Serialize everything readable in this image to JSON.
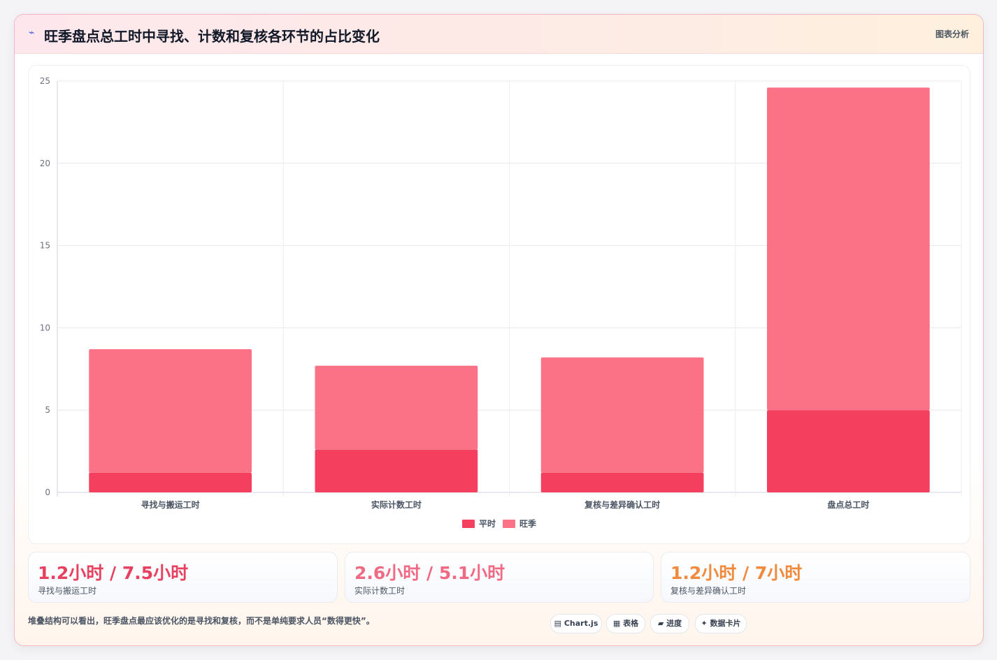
{
  "header": {
    "icon": "bolt-icon",
    "title": "旺季盘点总工时中寻找、计数和复核各环节的占比变化",
    "tag": "图表分析"
  },
  "chart_data": {
    "type": "bar",
    "stacked": true,
    "categories": [
      "寻找与搬运工时",
      "实际计数工时",
      "复核与差异确认工时",
      "盘点总工时"
    ],
    "series": [
      {
        "name": "平时",
        "values": [
          1.2,
          2.6,
          1.2,
          5.0
        ],
        "color": "#f43f5e"
      },
      {
        "name": "旺季",
        "values": [
          7.5,
          5.1,
          7.0,
          19.6
        ],
        "color": "#fb7185"
      }
    ],
    "ylim": [
      0,
      25
    ],
    "yticks": [
      0,
      5,
      10,
      15,
      20,
      25
    ],
    "grid": true,
    "legend": "bottom"
  },
  "stats": [
    {
      "value": "1.2小时 / 7.5小时",
      "label": "寻找与搬运工时",
      "color": "#e8405f"
    },
    {
      "value": "2.6小时 / 5.1小时",
      "label": "实际计数工时",
      "color": "#f06a84"
    },
    {
      "value": "1.2小时 / 7小时",
      "label": "复核与差异确认工时",
      "color": "#f08a3c"
    }
  ],
  "footer": {
    "note": "堆叠结构可以看出，旺季盘点最应该优化的是寻找和复核，而不是单纯要求人员“数得更快”。",
    "pills": [
      {
        "icon": "▤",
        "label": "Chart.js"
      },
      {
        "icon": "▦",
        "label": "表格"
      },
      {
        "icon": "▰",
        "label": "进度"
      },
      {
        "icon": "✦",
        "label": "数据卡片"
      }
    ]
  }
}
